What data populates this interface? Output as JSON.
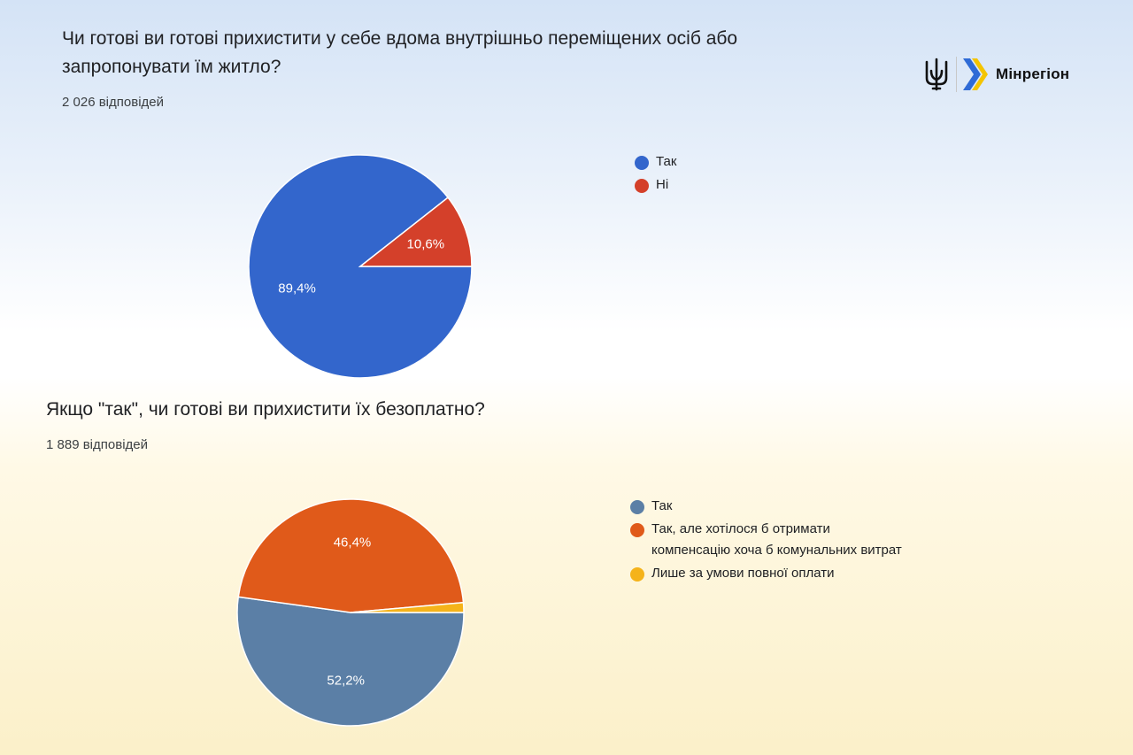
{
  "branding": {
    "name": "Мінрегіон",
    "colors": {
      "blue": "#2f6bd6",
      "yellow": "#f4c400",
      "dark": "#111111"
    }
  },
  "questions": [
    {
      "title": "Чи готові ви готові прихистити у себе вдома внутрішньо переміщених осіб або запропонувати їм житло?",
      "responses": "2 026 відповідей"
    },
    {
      "title": "Якщо \"так\", чи готові ви прихистити їх безоплатно?",
      "responses": "1 889 відповідей"
    }
  ],
  "chart_data": [
    {
      "type": "pie",
      "categories": [
        "Так",
        "Ні"
      ],
      "values": [
        89.4,
        10.6
      ],
      "value_labels": [
        "89,4%",
        "10,6%"
      ],
      "colors": [
        "#3366cc",
        "#d4402a"
      ],
      "legend_position": "right"
    },
    {
      "type": "pie",
      "categories": [
        "Так",
        "Так, але хотілося б отримати компенсацію хоча б комунальних витрат",
        "Лише за умови повної оплати"
      ],
      "values": [
        52.2,
        46.4,
        1.4
      ],
      "value_labels": [
        "52,2%",
        "46,4%",
        ""
      ],
      "colors": [
        "#5b7fa6",
        "#e05a1a",
        "#f5b31a"
      ],
      "legend_position": "right"
    }
  ]
}
